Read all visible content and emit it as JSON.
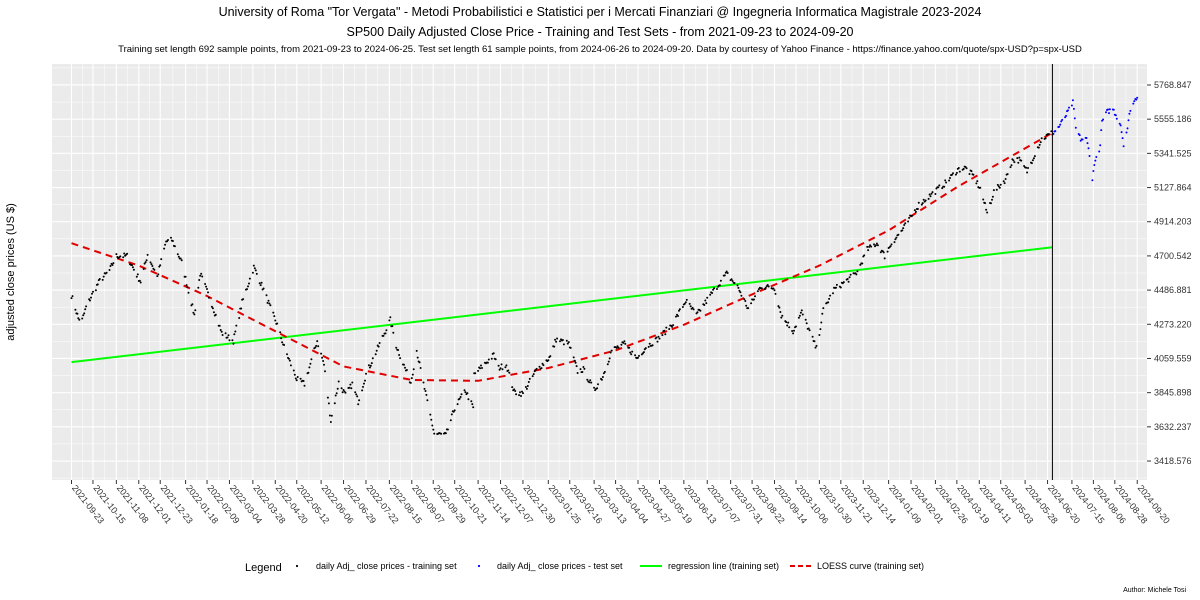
{
  "titles": {
    "title": "University of Roma \"Tor Vergata\" - Metodi Probabilistici e Statistici per i Mercati Finanziari @ Ingegneria Informatica Magistrale 2023-2024",
    "subtitle": "SP500 Daily Adjusted Close Price - Training and Test Sets - from 2021-09-23 to 2024-09-20",
    "caption": "Training set length 692 sample points, from 2021-09-23 to 2024-06-25. Test set length 61 sample points, from 2024-06-26 to 2024-09-20. Data by courtesy of Yahoo Finance - https://finance.yahoo.com/quote/spx-USD?p=spx-USD"
  },
  "author": "Author: Michele Tosi",
  "legend": {
    "title": "Legend",
    "items": [
      "daily Adj_ close prices - training set",
      "daily Adj_ close prices - test set",
      "regression line (training set)",
      "LOESS curve (training set)"
    ]
  },
  "colors": {
    "panel": "#ebebeb",
    "grid": "#ffffff",
    "training": "#000000",
    "test": "#0000ff",
    "regression": "#00ff00",
    "loess": "#e00000",
    "split_line": "#000000"
  },
  "chart_data": {
    "type": "scatter",
    "ylabel": "adjusted close prices (US $)",
    "xlabel": "",
    "ylim": [
      3300,
      5900
    ],
    "xlim": [
      "2021-09-03",
      "2024-09-30"
    ],
    "yticks": [
      3418.576,
      3632.237,
      3845.898,
      4059.559,
      4273.22,
      4486.881,
      4700.542,
      4914.203,
      5127.864,
      5341.525,
      5555.186,
      5768.847
    ],
    "xticks": [
      "2021-09-23",
      "2021-10-15",
      "2021-11-08",
      "2021-12-01",
      "2021-12-23",
      "2022-01-18",
      "2022-02-09",
      "2022-03-04",
      "2022-03-28",
      "2022-04-20",
      "2022-05-12",
      "2022-06-06",
      "2022-06-29",
      "2022-07-22",
      "2022-08-15",
      "2022-09-07",
      "2022-09-29",
      "2022-10-21",
      "2022-11-14",
      "2022-12-07",
      "2022-12-30",
      "2023-01-25",
      "2023-02-16",
      "2023-03-13",
      "2023-04-04",
      "2023-04-27",
      "2023-05-19",
      "2023-06-13",
      "2023-07-07",
      "2023-07-31",
      "2023-08-22",
      "2023-09-14",
      "2023-10-06",
      "2023-10-30",
      "2023-11-21",
      "2023-12-14",
      "2024-01-09",
      "2024-02-01",
      "2024-02-26",
      "2024-03-19",
      "2024-04-11",
      "2024-05-03",
      "2024-05-28",
      "2024-06-20",
      "2024-07-15",
      "2024-08-06",
      "2024-08-28",
      "2024-09-20"
    ],
    "xtick_texts": [
      "2021-09-23",
      "2021-10-15",
      "2021-11-08",
      "2021-12-01",
      "2021-12-23",
      "2022-01-18",
      "2022-02-09",
      "2022-03-04",
      "2022-03-28",
      "2022-04-20",
      "2022-05-12",
      "2022-06-06",
      "2022-06-29",
      "2022-07-22",
      "2022-08-15",
      "2022-09-07",
      "2022-09-29",
      "2022-10-21",
      "2022-11-14",
      "2022-12-07",
      "2022-12-30",
      "2023-01-25",
      "2023-02-16",
      "2023-03-13",
      "2023-04-04",
      "2023-04-27",
      "2023-05-19",
      "2023-06-13",
      "2023-07-07",
      "2023-07-31",
      "2023-08-22",
      "2023-09-14",
      "2023-10-06",
      "2023-10-30",
      "2023-11-21",
      "2023-12-14",
      "2024-01-09",
      "2024-02-01",
      "2024-02-26",
      "2024-03-19",
      "2024-04-11",
      "2024-05-03",
      "2024-05-28",
      "2024-06-20",
      "2024-07-15",
      "2024-08-06",
      "2024-08-28",
      "2024-09-20"
    ],
    "split_date": "2024-06-25",
    "training_anchors": [
      [
        "2021-09-23",
        4455
      ],
      [
        "2021-09-30",
        4310
      ],
      [
        "2021-10-04",
        4300
      ],
      [
        "2021-10-08",
        4380
      ],
      [
        "2021-10-15",
        4470
      ],
      [
        "2021-10-22",
        4545
      ],
      [
        "2021-11-01",
        4610
      ],
      [
        "2021-11-08",
        4700
      ],
      [
        "2021-11-19",
        4700
      ],
      [
        "2021-11-30",
        4570
      ],
      [
        "2021-12-03",
        4540
      ],
      [
        "2021-12-10",
        4710
      ],
      [
        "2021-12-20",
        4570
      ],
      [
        "2021-12-29",
        4790
      ],
      [
        "2022-01-04",
        4800
      ],
      [
        "2022-01-14",
        4660
      ],
      [
        "2022-01-27",
        4330
      ],
      [
        "2022-02-02",
        4590
      ],
      [
        "2022-02-14",
        4400
      ],
      [
        "2022-02-24",
        4220
      ],
      [
        "2022-03-08",
        4170
      ],
      [
        "2022-03-17",
        4410
      ],
      [
        "2022-03-29",
        4630
      ],
      [
        "2022-04-08",
        4490
      ],
      [
        "2022-04-14",
        4390
      ],
      [
        "2022-04-22",
        4270
      ],
      [
        "2022-04-29",
        4130
      ],
      [
        "2022-05-12",
        3930
      ],
      [
        "2022-05-20",
        3900
      ],
      [
        "2022-06-02",
        4170
      ],
      [
        "2022-06-09",
        4020
      ],
      [
        "2022-06-16",
        3670
      ],
      [
        "2022-06-24",
        3910
      ],
      [
        "2022-07-01",
        3830
      ],
      [
        "2022-07-08",
        3900
      ],
      [
        "2022-07-14",
        3790
      ],
      [
        "2022-07-22",
        3960
      ],
      [
        "2022-08-05",
        4150
      ],
      [
        "2022-08-16",
        4300
      ],
      [
        "2022-08-22",
        4140
      ],
      [
        "2022-08-29",
        4030
      ],
      [
        "2022-09-06",
        3910
      ],
      [
        "2022-09-12",
        4110
      ],
      [
        "2022-09-19",
        3900
      ],
      [
        "2022-09-30",
        3590
      ],
      [
        "2022-10-12",
        3580
      ],
      [
        "2022-10-21",
        3750
      ],
      [
        "2022-11-01",
        3860
      ],
      [
        "2022-11-09",
        3750
      ],
      [
        "2022-11-10",
        3960
      ],
      [
        "2022-11-30",
        4080
      ],
      [
        "2022-12-05",
        4000
      ],
      [
        "2022-12-13",
        4020
      ],
      [
        "2022-12-21",
        3850
      ],
      [
        "2022-12-30",
        3840
      ],
      [
        "2023-01-12",
        3980
      ],
      [
        "2023-01-27",
        4070
      ],
      [
        "2023-02-02",
        4180
      ],
      [
        "2023-02-15",
        4150
      ],
      [
        "2023-02-24",
        3980
      ],
      [
        "2023-03-02",
        3990
      ],
      [
        "2023-03-13",
        3860
      ],
      [
        "2023-03-22",
        3950
      ],
      [
        "2023-03-31",
        4110
      ],
      [
        "2023-04-13",
        4150
      ],
      [
        "2023-04-26",
        4060
      ],
      [
        "2023-05-05",
        4130
      ],
      [
        "2023-05-19",
        4190
      ],
      [
        "2023-06-02",
        4280
      ],
      [
        "2023-06-15",
        4420
      ],
      [
        "2023-06-26",
        4330
      ],
      [
        "2023-07-12",
        4470
      ],
      [
        "2023-07-27",
        4590
      ],
      [
        "2023-08-08",
        4500
      ],
      [
        "2023-08-18",
        4370
      ],
      [
        "2023-08-31",
        4510
      ],
      [
        "2023-09-14",
        4500
      ],
      [
        "2023-09-21",
        4330
      ],
      [
        "2023-10-03",
        4230
      ],
      [
        "2023-10-12",
        4350
      ],
      [
        "2023-10-27",
        4120
      ],
      [
        "2023-11-03",
        4360
      ],
      [
        "2023-11-14",
        4490
      ],
      [
        "2023-11-28",
        4550
      ],
      [
        "2023-12-08",
        4600
      ],
      [
        "2023-12-18",
        4740
      ],
      [
        "2023-12-28",
        4780
      ],
      [
        "2024-01-05",
        4700
      ],
      [
        "2024-01-12",
        4780
      ],
      [
        "2024-01-24",
        4870
      ],
      [
        "2024-02-09",
        5020
      ],
      [
        "2024-02-23",
        5090
      ],
      [
        "2024-03-08",
        5160
      ],
      [
        "2024-03-20",
        5240
      ],
      [
        "2024-03-28",
        5250
      ],
      [
        "2024-04-05",
        5200
      ],
      [
        "2024-04-12",
        5120
      ],
      [
        "2024-04-19",
        4970
      ],
      [
        "2024-04-26",
        5100
      ],
      [
        "2024-05-08",
        5180
      ],
      [
        "2024-05-15",
        5300
      ],
      [
        "2024-05-22",
        5300
      ],
      [
        "2024-05-30",
        5230
      ],
      [
        "2024-06-07",
        5340
      ],
      [
        "2024-06-14",
        5430
      ],
      [
        "2024-06-25",
        5470
      ]
    ],
    "test_anchors": [
      [
        "2024-06-26",
        5470
      ],
      [
        "2024-07-02",
        5510
      ],
      [
        "2024-07-09",
        5580
      ],
      [
        "2024-07-16",
        5660
      ],
      [
        "2024-07-19",
        5500
      ],
      [
        "2024-07-24",
        5430
      ],
      [
        "2024-07-30",
        5430
      ],
      [
        "2024-08-02",
        5340
      ],
      [
        "2024-08-05",
        5180
      ],
      [
        "2024-08-08",
        5310
      ],
      [
        "2024-08-12",
        5340
      ],
      [
        "2024-08-15",
        5540
      ],
      [
        "2024-08-20",
        5600
      ],
      [
        "2024-08-26",
        5620
      ],
      [
        "2024-09-03",
        5520
      ],
      [
        "2024-09-06",
        5400
      ],
      [
        "2024-09-10",
        5500
      ],
      [
        "2024-09-13",
        5620
      ],
      [
        "2024-09-20",
        5700
      ]
    ],
    "regression": [
      [
        "2021-09-23",
        4037
      ],
      [
        "2024-06-25",
        4755
      ]
    ],
    "loess": [
      [
        "2021-09-23",
        4780
      ],
      [
        "2021-12-01",
        4640
      ],
      [
        "2022-02-09",
        4450
      ],
      [
        "2022-04-20",
        4230
      ],
      [
        "2022-06-29",
        4010
      ],
      [
        "2022-09-07",
        3925
      ],
      [
        "2022-11-14",
        3920
      ],
      [
        "2023-01-25",
        4000
      ],
      [
        "2023-04-04",
        4110
      ],
      [
        "2023-06-13",
        4270
      ],
      [
        "2023-08-22",
        4460
      ],
      [
        "2023-10-30",
        4640
      ],
      [
        "2024-01-09",
        4860
      ],
      [
        "2024-03-19",
        5130
      ],
      [
        "2024-06-25",
        5470
      ]
    ]
  }
}
